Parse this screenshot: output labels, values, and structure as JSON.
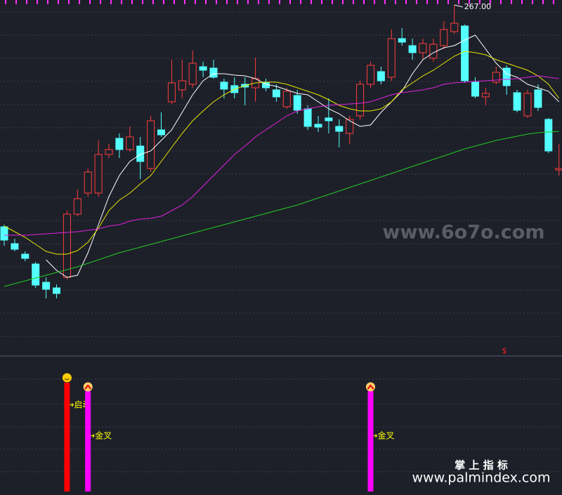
{
  "chart_data": {
    "type": "candlestick",
    "ylim": [
      117.6,
      269.1
    ],
    "candles": {
      "open": [
        172.2,
        165.0,
        160.5,
        156.3,
        148.5,
        146.1,
        150.6,
        177.6,
        186.6,
        186.6,
        203.1,
        210.0,
        205.2,
        206.7,
        197.1,
        213.6,
        225.6,
        230.7,
        233.1,
        240.6,
        240.0,
        234.0,
        232.5,
        233.1,
        231.6,
        234.0,
        230.7,
        223.5,
        228.3,
        222.6,
        216.0,
        218.7,
        215.1,
        212.1,
        219.6,
        233.1,
        238.5,
        236.1,
        252.6,
        249.6,
        246.6,
        244.2,
        249.6,
        255.6,
        258.0,
        234.0,
        227.7,
        234.0,
        240.0,
        229.5,
        219.6,
        230.7,
        218.1,
        196.5
      ],
      "high": [
        173.1,
        167.1,
        161.7,
        157.2,
        150.6,
        147.6,
        179.1,
        188.1,
        197.1,
        209.1,
        207.6,
        212.1,
        215.1,
        210.6,
        219.6,
        221.1,
        243.6,
        243.6,
        247.5,
        242.7,
        243.6,
        235.5,
        236.1,
        236.1,
        244.5,
        235.5,
        233.1,
        231.6,
        230.7,
        224.1,
        219.6,
        227.1,
        218.1,
        219.6,
        234.6,
        242.7,
        240.6,
        256.5,
        257.1,
        252.6,
        252.6,
        252.6,
        260.1,
        267.0,
        258.6,
        236.1,
        231.6,
        240.6,
        241.2,
        230.7,
        230.7,
        233.1,
        218.7,
        207.6
      ],
      "low": [
        164.1,
        161.7,
        157.5,
        146.1,
        141.6,
        141.6,
        149.7,
        176.7,
        185.1,
        185.1,
        201.6,
        201.6,
        204.3,
        192.6,
        195.6,
        210.6,
        224.7,
        227.1,
        231.6,
        236.1,
        235.5,
        227.1,
        227.1,
        224.1,
        225.6,
        230.1,
        225.6,
        222.6,
        220.5,
        213.6,
        212.7,
        212.1,
        206.1,
        207.6,
        218.1,
        231.6,
        233.1,
        234.6,
        249.6,
        243.6,
        243.6,
        242.7,
        248.1,
        254.7,
        233.7,
        227.1,
        224.1,
        233.1,
        228.6,
        221.1,
        218.7,
        221.7,
        203.7,
        194.1
      ],
      "close": [
        166.5,
        162.6,
        158.7,
        147.3,
        145.5,
        143.7,
        177.6,
        184.2,
        195.6,
        203.1,
        205.2,
        205.2,
        210.6,
        200.1,
        217.5,
        211.5,
        233.7,
        234.6,
        242.1,
        239.1,
        236.1,
        231.0,
        229.5,
        231.9,
        235.5,
        231.6,
        227.7,
        230.1,
        222.0,
        215.1,
        214.8,
        217.5,
        213.0,
        218.1,
        233.1,
        241.2,
        234.6,
        252.6,
        251.1,
        246.6,
        250.5,
        250.2,
        256.5,
        259.2,
        234.6,
        228.0,
        229.2,
        238.2,
        232.5,
        222.0,
        229.2,
        223.2,
        204.6,
        197.1
      ]
    },
    "up_color": "#ff3c3c",
    "down_color": "#54ffff",
    "high_mark": {
      "index": 43,
      "label": "267.00"
    },
    "series": [
      {
        "color": "#ffffff",
        "values": [
          null,
          null,
          null,
          null,
          158.1,
          153.6,
          150.6,
          151.5,
          161.1,
          173.1,
          185.1,
          194.1,
          200.1,
          203.1,
          204.6,
          209.1,
          213.6,
          221.1,
          228.6,
          234.6,
          237.6,
          237.6,
          237.0,
          236.7,
          235.5,
          233.1,
          232.2,
          230.7,
          229.2,
          228.6,
          225.6,
          222.6,
          220.5,
          217.5,
          215.1,
          215.7,
          221.1,
          225.6,
          230.1,
          237.6,
          243.6,
          246.6,
          248.7,
          249.6,
          252.0,
          254.1,
          248.1,
          242.1,
          237.6,
          236.1,
          233.1,
          231.6,
          230.1,
          225.6
        ]
      },
      {
        "color": "#e6e600",
        "values": [
          172.5,
          170.1,
          167.7,
          164.7,
          161.7,
          160.5,
          160.5,
          162.0,
          165.6,
          171.6,
          179.1,
          183.6,
          186.6,
          190.5,
          194.1,
          200.1,
          206.1,
          212.1,
          217.5,
          221.7,
          225.6,
          228.6,
          231.0,
          232.5,
          233.7,
          234.0,
          234.0,
          233.1,
          231.6,
          230.1,
          228.6,
          226.5,
          224.1,
          222.6,
          221.7,
          221.7,
          222.6,
          225.6,
          230.7,
          233.7,
          236.7,
          239.1,
          242.1,
          245.1,
          247.2,
          246.6,
          245.7,
          243.6,
          242.1,
          240.6,
          239.1,
          236.7,
          233.1,
          227.1
        ]
      },
      {
        "color": "#e020e0",
        "values": [
          168.6,
          168.6,
          168.6,
          168.9,
          169.2,
          169.5,
          169.8,
          170.1,
          170.7,
          171.3,
          172.5,
          173.1,
          174.6,
          175.5,
          175.8,
          176.7,
          179.1,
          181.5,
          185.1,
          189.6,
          194.1,
          198.6,
          203.1,
          206.7,
          210.6,
          213.6,
          216.6,
          219.6,
          221.7,
          222.6,
          223.5,
          224.1,
          224.4,
          224.7,
          225.0,
          225.6,
          227.1,
          228.6,
          229.5,
          230.1,
          230.7,
          231.6,
          233.1,
          233.7,
          234.0,
          234.3,
          234.6,
          234.9,
          235.2,
          235.5,
          236.1,
          236.7,
          236.1,
          235.5
        ]
      },
      {
        "color": "#22cc22",
        "values": [
          146.7,
          147.9,
          149.1,
          150.3,
          151.5,
          152.7,
          153.9,
          155.1,
          156.6,
          158.1,
          159.6,
          161.1,
          162.3,
          163.5,
          164.7,
          165.9,
          167.1,
          168.3,
          169.5,
          170.7,
          171.9,
          173.1,
          174.3,
          175.5,
          176.7,
          177.9,
          179.1,
          180.3,
          181.5,
          183.0,
          184.5,
          186.0,
          187.5,
          189.0,
          190.5,
          192.0,
          193.5,
          195.0,
          196.5,
          198.0,
          199.5,
          201.0,
          202.5,
          204.0,
          205.5,
          206.7,
          207.9,
          209.1,
          210.0,
          210.9,
          211.8,
          212.4,
          212.7,
          213.0
        ]
      }
    ],
    "signals": [
      {
        "index": 6,
        "label": "→启动",
        "color": "#ff0000",
        "icon": "smile"
      },
      {
        "index": 8,
        "label": "→金叉",
        "color": "#ff00ff",
        "icon": "up"
      },
      {
        "index": 35,
        "label": "→金叉",
        "color": "#ff00ff",
        "icon": "up"
      }
    ]
  },
  "watermark": "www.6o7o.com",
  "marker": "$",
  "brand": "掌 上 指 标",
  "site": "www.palmindex.com"
}
